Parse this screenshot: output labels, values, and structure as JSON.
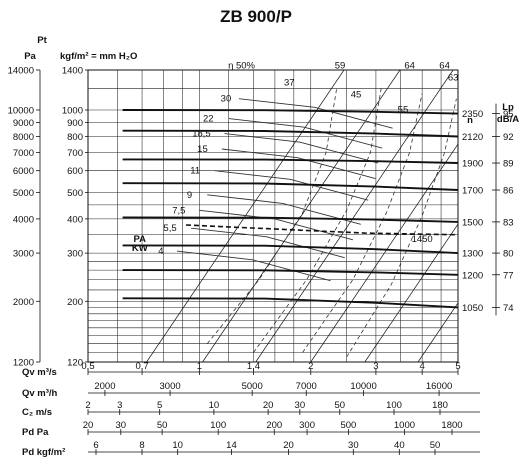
{
  "chart_data": {
    "type": "line",
    "title": "ZB 900/P",
    "left_axis": {
      "label_top": "Pt",
      "label_unit": "Pa",
      "ticks": [
        "14000",
        "10000",
        "9000",
        "8000",
        "7000",
        "6000",
        "5000",
        "4000",
        "3000",
        "2000",
        "1200"
      ]
    },
    "inner_axis": {
      "label": "kgf/m² = mm H₂O",
      "ticks": [
        "1400",
        "1000",
        "900",
        "800",
        "700",
        "600",
        "500",
        "400",
        "300",
        "200",
        "120"
      ]
    },
    "rpm_axis": {
      "label": "n",
      "ticks": [
        "2350",
        "2120",
        "1900",
        "1700",
        "1500",
        "1300",
        "1200",
        "1050"
      ]
    },
    "lp_axis": {
      "label_top": "Lp",
      "label_unit": "dB/A",
      "ticks": [
        "95",
        "92",
        "89",
        "86",
        "83",
        "80",
        "77",
        "74"
      ]
    },
    "efficiency_labels": [
      "η 50%",
      "59",
      "64",
      "64",
      "63",
      "37",
      "45",
      "55"
    ],
    "power_labels": [
      "30",
      "22",
      "18,5",
      "15",
      "11",
      "9",
      "7,5",
      "5,5",
      "4"
    ],
    "pa_kw_label": [
      "PA",
      "KW"
    ],
    "pa_speed_label": "1450",
    "curves": [
      {
        "rpm": 2350,
        "lp": 95,
        "p_start": 1000,
        "p_end": 970
      },
      {
        "rpm": 2120,
        "lp": 92,
        "p_start": 840,
        "p_end": 800
      },
      {
        "rpm": 1900,
        "lp": 89,
        "p_start": 660,
        "p_end": 640
      },
      {
        "rpm": 1700,
        "lp": 86,
        "p_start": 540,
        "p_end": 510
      },
      {
        "rpm": 1500,
        "lp": 83,
        "p_start": 405,
        "p_end": 390
      },
      {
        "rpm": 1300,
        "lp": 80,
        "p_start": 320,
        "p_end": 300
      },
      {
        "rpm": 1200,
        "lp": 77,
        "p_start": 260,
        "p_end": 250
      },
      {
        "rpm": 1050,
        "lp": 74,
        "p_start": 205,
        "p_end": 190
      }
    ],
    "bottom_scales": [
      {
        "label": "Qv m³/s",
        "ticks": [
          "0,5",
          "0,7",
          "1",
          "1,4",
          "2",
          "3",
          "4",
          "5"
        ]
      },
      {
        "label": "Qv m³/h",
        "ticks": [
          "2000",
          "3000",
          "5000",
          "7000",
          "10000",
          "16000"
        ]
      },
      {
        "label": "C₂ m/s",
        "ticks": [
          "2",
          "3",
          "5",
          "10",
          "20",
          "30",
          "50",
          "100",
          "180"
        ]
      },
      {
        "label": "Pd Pa",
        "ticks": [
          "20",
          "30",
          "50",
          "100",
          "200",
          "300",
          "500",
          "1000",
          "1800"
        ]
      },
      {
        "label": "Pd kgf/m²",
        "ticks": [
          "6",
          "8",
          "10",
          "14",
          "20",
          "30",
          "40",
          "50"
        ]
      }
    ]
  }
}
